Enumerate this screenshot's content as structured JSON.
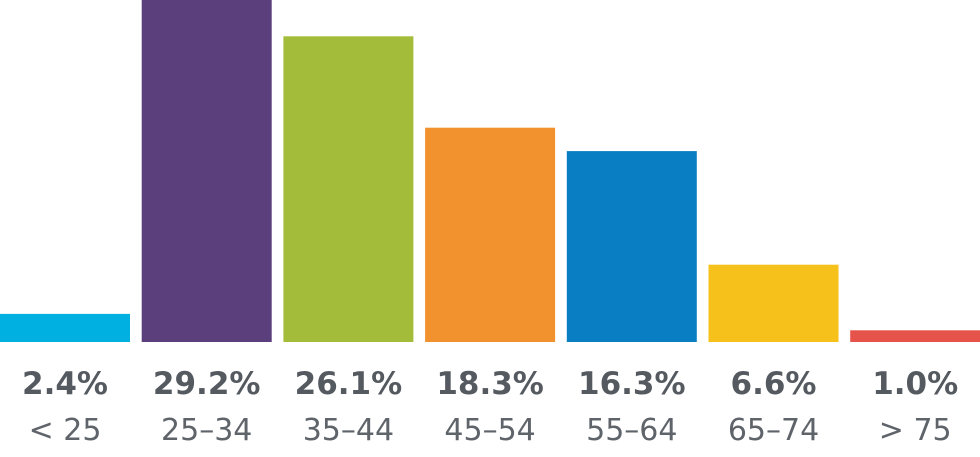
{
  "chart_data": {
    "type": "bar",
    "categories": [
      "< 25",
      "25–34",
      "35–44",
      "45–54",
      "55–64",
      "65–74",
      "> 75"
    ],
    "values": [
      2.4,
      29.2,
      26.1,
      18.3,
      16.3,
      6.6,
      1.0
    ],
    "value_labels": [
      "2.4%",
      "29.2%",
      "26.1%",
      "18.3%",
      "16.3%",
      "6.6%",
      "1.0%"
    ],
    "colors": [
      "#00b0e0",
      "#5b3f7c",
      "#a3bd3a",
      "#f2922e",
      "#0a7ec2",
      "#f5c11a",
      "#e5534b"
    ],
    "ylim": [
      0,
      29.2
    ],
    "grid": false,
    "legend": "none"
  }
}
